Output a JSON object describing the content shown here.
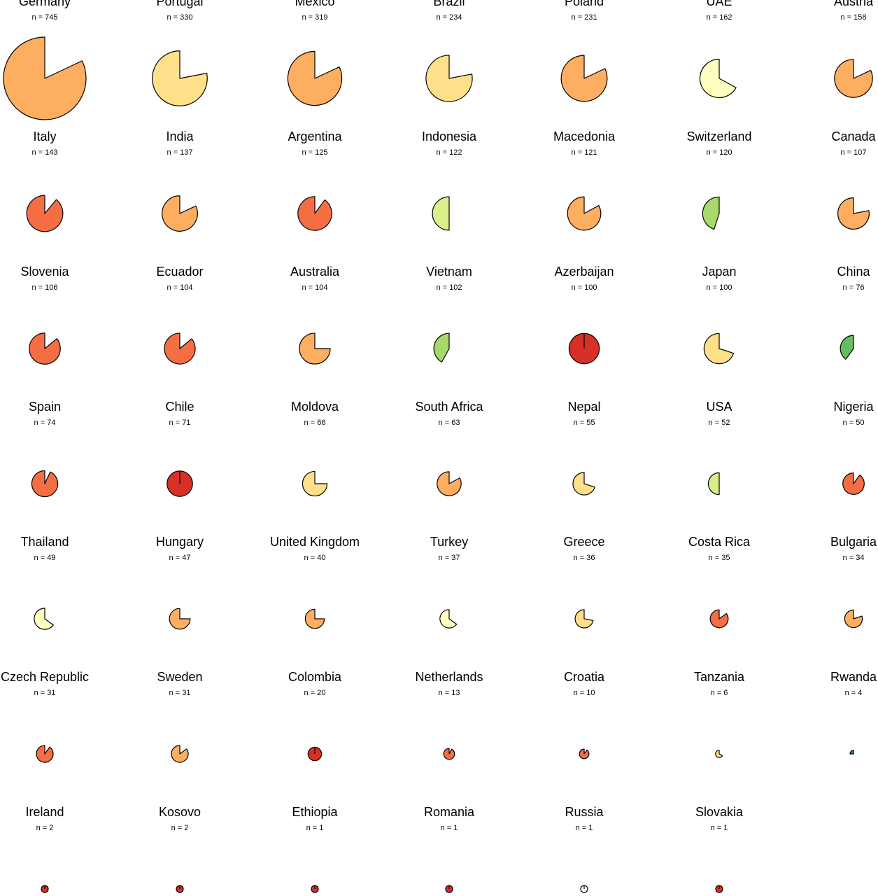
{
  "chart_data": {
    "type": "pie",
    "n_prefix": "n = ",
    "colors": {
      "dark_red": "#d73027",
      "red_orange": "#f46d43",
      "orange": "#fdae61",
      "light_orange": "#fee08b",
      "cream": "#ffffbf",
      "light_green": "#d9ef8b",
      "green": "#a6d96a",
      "mid_green": "#66bd63",
      "dark_green": "#1a9850",
      "empty": "#ffffff"
    },
    "countries": [
      {
        "name": "Germany",
        "n": 745,
        "fraction": 0.82,
        "color": "orange"
      },
      {
        "name": "Portugal",
        "n": 330,
        "fraction": 0.78,
        "color": "light_orange"
      },
      {
        "name": "Mexico",
        "n": 319,
        "fraction": 0.82,
        "color": "orange"
      },
      {
        "name": "Brazil",
        "n": 234,
        "fraction": 0.78,
        "color": "light_orange"
      },
      {
        "name": "Poland",
        "n": 231,
        "fraction": 0.82,
        "color": "orange"
      },
      {
        "name": "UAE",
        "n": 162,
        "fraction": 0.67,
        "color": "cream"
      },
      {
        "name": "Austria",
        "n": 158,
        "fraction": 0.82,
        "color": "orange"
      },
      {
        "name": "Italy",
        "n": 143,
        "fraction": 0.89,
        "color": "red_orange"
      },
      {
        "name": "India",
        "n": 137,
        "fraction": 0.82,
        "color": "orange"
      },
      {
        "name": "Argentina",
        "n": 125,
        "fraction": 0.9,
        "color": "red_orange"
      },
      {
        "name": "Indonesia",
        "n": 122,
        "fraction": 0.5,
        "color": "light_green"
      },
      {
        "name": "Macedonia",
        "n": 121,
        "fraction": 0.83,
        "color": "orange"
      },
      {
        "name": "Switzerland",
        "n": 120,
        "fraction": 0.45,
        "color": "green"
      },
      {
        "name": "Canada",
        "n": 107,
        "fraction": 0.78,
        "color": "orange"
      },
      {
        "name": "Slovenia",
        "n": 106,
        "fraction": 0.86,
        "color": "red_orange"
      },
      {
        "name": "Ecuador",
        "n": 104,
        "fraction": 0.86,
        "color": "red_orange"
      },
      {
        "name": "Australia",
        "n": 104,
        "fraction": 0.75,
        "color": "orange"
      },
      {
        "name": "Vietnam",
        "n": 102,
        "fraction": 0.42,
        "color": "green"
      },
      {
        "name": "Azerbaijan",
        "n": 100,
        "fraction": 1.0,
        "color": "dark_red"
      },
      {
        "name": "Japan",
        "n": 100,
        "fraction": 0.7,
        "color": "light_orange"
      },
      {
        "name": "China",
        "n": 76,
        "fraction": 0.4,
        "color": "mid_green"
      },
      {
        "name": "Spain",
        "n": 74,
        "fraction": 0.93,
        "color": "red_orange"
      },
      {
        "name": "Chile",
        "n": 71,
        "fraction": 1.0,
        "color": "dark_red"
      },
      {
        "name": "Moldova",
        "n": 66,
        "fraction": 0.75,
        "color": "light_orange"
      },
      {
        "name": "South Africa",
        "n": 63,
        "fraction": 0.83,
        "color": "orange"
      },
      {
        "name": "Nepal",
        "n": 55,
        "fraction": 0.7,
        "color": "light_orange"
      },
      {
        "name": "USA",
        "n": 52,
        "fraction": 0.5,
        "color": "light_green"
      },
      {
        "name": "Nigeria",
        "n": 50,
        "fraction": 0.9,
        "color": "red_orange"
      },
      {
        "name": "Thailand",
        "n": 49,
        "fraction": 0.65,
        "color": "cream"
      },
      {
        "name": "Hungary",
        "n": 47,
        "fraction": 0.75,
        "color": "orange"
      },
      {
        "name": "United Kingdom",
        "n": 40,
        "fraction": 0.75,
        "color": "orange"
      },
      {
        "name": "Turkey",
        "n": 37,
        "fraction": 0.65,
        "color": "cream"
      },
      {
        "name": "Greece",
        "n": 36,
        "fraction": 0.72,
        "color": "light_orange"
      },
      {
        "name": "Costa Rica",
        "n": 35,
        "fraction": 0.85,
        "color": "red_orange"
      },
      {
        "name": "Bulgaria",
        "n": 34,
        "fraction": 0.8,
        "color": "orange"
      },
      {
        "name": "Czech Republic",
        "n": 31,
        "fraction": 0.9,
        "color": "red_orange"
      },
      {
        "name": "Sweden",
        "n": 31,
        "fraction": 0.85,
        "color": "orange"
      },
      {
        "name": "Colombia",
        "n": 20,
        "fraction": 1.0,
        "color": "dark_red"
      },
      {
        "name": "Netherlands",
        "n": 13,
        "fraction": 0.92,
        "color": "red_orange"
      },
      {
        "name": "Croatia",
        "n": 10,
        "fraction": 0.9,
        "color": "red_orange"
      },
      {
        "name": "Tanzania",
        "n": 6,
        "fraction": 0.67,
        "color": "light_orange"
      },
      {
        "name": "Rwanda",
        "n": 4,
        "fraction": 0.25,
        "color": "dark_green"
      },
      {
        "name": "Ireland",
        "n": 2,
        "fraction": 1.0,
        "color": "dark_red"
      },
      {
        "name": "Kosovo",
        "n": 2,
        "fraction": 1.0,
        "color": "dark_red"
      },
      {
        "name": "Ethiopia",
        "n": 1,
        "fraction": 1.0,
        "color": "dark_red"
      },
      {
        "name": "Romania",
        "n": 1,
        "fraction": 1.0,
        "color": "dark_red"
      },
      {
        "name": "Russia",
        "n": 1,
        "fraction": 1.0,
        "color": "empty"
      },
      {
        "name": "Slovakia",
        "n": 1,
        "fraction": 1.0,
        "color": "dark_red"
      }
    ]
  }
}
